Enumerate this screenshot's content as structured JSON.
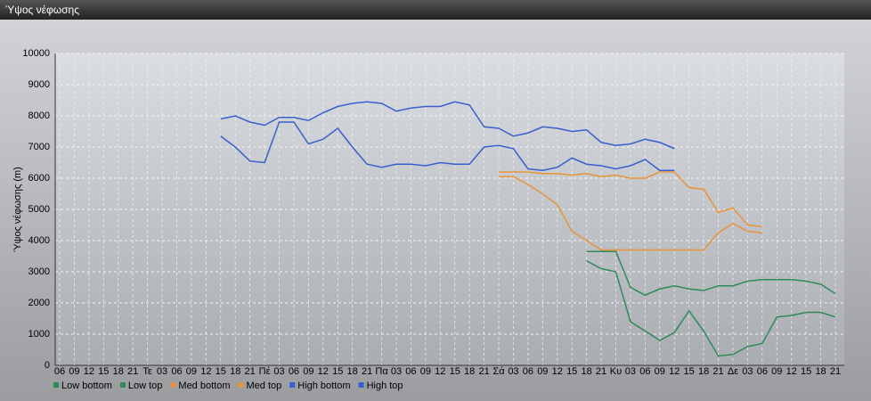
{
  "chart_data": {
    "type": "line",
    "title": "Ύψος νέφωσης",
    "y_label": "Ύψος νέφωσης (m)",
    "categories": [
      "06",
      "09",
      "12",
      "15",
      "18",
      "21",
      "Τε",
      "03",
      "06",
      "09",
      "12",
      "15",
      "18",
      "21",
      "Πέ",
      "03",
      "06",
      "09",
      "12",
      "15",
      "18",
      "21",
      "Πα",
      "03",
      "06",
      "09",
      "12",
      "15",
      "18",
      "21",
      "Σά",
      "03",
      "06",
      "09",
      "12",
      "15",
      "18",
      "21",
      "Κυ",
      "03",
      "06",
      "09",
      "12",
      "15",
      "18",
      "21",
      "Δε",
      "03",
      "06",
      "09",
      "12",
      "15",
      "18",
      "21"
    ],
    "ylim": [
      0,
      10000
    ],
    "yticks": [
      0,
      1000,
      2000,
      3000,
      4000,
      5000,
      6000,
      7000,
      8000,
      9000,
      10000
    ],
    "grid": true,
    "series": [
      {
        "name": "Low bottom",
        "color": "#2e8b57",
        "values": [
          null,
          null,
          null,
          null,
          null,
          null,
          null,
          null,
          null,
          null,
          null,
          null,
          null,
          null,
          null,
          null,
          null,
          null,
          null,
          null,
          null,
          null,
          null,
          null,
          null,
          null,
          null,
          null,
          null,
          null,
          null,
          null,
          null,
          null,
          null,
          null,
          3350,
          3100,
          3000,
          1400,
          1100,
          800,
          1050,
          1750,
          1100,
          300,
          350,
          600,
          700,
          1550,
          1600,
          1700,
          1700,
          1550
        ]
      },
      {
        "name": "Low top",
        "color": "#2e8b57",
        "values": [
          null,
          null,
          null,
          null,
          null,
          null,
          null,
          null,
          null,
          null,
          null,
          null,
          null,
          null,
          null,
          null,
          null,
          null,
          null,
          null,
          null,
          null,
          null,
          null,
          null,
          null,
          null,
          null,
          null,
          null,
          null,
          null,
          null,
          null,
          null,
          null,
          3650,
          3650,
          3650,
          2500,
          2250,
          2450,
          2550,
          2450,
          2400,
          2550,
          2550,
          2700,
          2750,
          2750,
          2750,
          2700,
          2600,
          2300
        ]
      },
      {
        "name": "Med bottom",
        "color": "#e8943a",
        "values": [
          null,
          null,
          null,
          null,
          null,
          null,
          null,
          null,
          null,
          null,
          null,
          null,
          null,
          null,
          null,
          null,
          null,
          null,
          null,
          null,
          null,
          null,
          null,
          null,
          null,
          null,
          null,
          null,
          null,
          null,
          6050,
          6050,
          5800,
          5500,
          5150,
          4300,
          4000,
          3700,
          3700,
          3700,
          3700,
          3700,
          3700,
          3700,
          3700,
          4250,
          4550,
          4300,
          4250,
          null,
          null,
          null,
          null,
          null
        ]
      },
      {
        "name": "Med top",
        "color": "#e8943a",
        "values": [
          null,
          null,
          null,
          null,
          null,
          null,
          null,
          null,
          null,
          null,
          null,
          null,
          null,
          null,
          null,
          null,
          null,
          null,
          null,
          null,
          null,
          null,
          null,
          null,
          null,
          null,
          null,
          null,
          null,
          null,
          6200,
          6200,
          6200,
          6150,
          6150,
          6100,
          6150,
          6050,
          6100,
          6000,
          6000,
          6200,
          6200,
          5700,
          5650,
          4900,
          5050,
          4500,
          4450,
          null,
          null,
          null,
          null,
          null
        ]
      },
      {
        "name": "High bottom",
        "color": "#3a5fcd",
        "values": [
          null,
          null,
          null,
          null,
          null,
          null,
          null,
          null,
          null,
          null,
          null,
          7350,
          7000,
          6550,
          6500,
          7800,
          7800,
          7100,
          7250,
          7600,
          7000,
          6450,
          6350,
          6450,
          6450,
          6400,
          6500,
          6450,
          6450,
          7000,
          7050,
          6950,
          6300,
          6250,
          6350,
          6650,
          6450,
          6400,
          6300,
          6400,
          6600,
          6250,
          6250,
          null,
          null,
          null,
          null,
          null,
          null,
          null,
          null,
          null,
          null,
          null
        ]
      },
      {
        "name": "High top",
        "color": "#3a5fcd",
        "values": [
          null,
          null,
          null,
          null,
          null,
          null,
          null,
          null,
          null,
          null,
          null,
          7900,
          8000,
          7800,
          7700,
          7950,
          7950,
          7850,
          8100,
          8300,
          8400,
          8450,
          8400,
          8150,
          8250,
          8300,
          8300,
          8450,
          8350,
          7650,
          7600,
          7350,
          7450,
          7650,
          7600,
          7500,
          7550,
          7150,
          7050,
          7100,
          7250,
          7150,
          6950,
          null,
          null,
          null,
          null,
          null,
          null,
          null,
          null,
          null,
          null,
          null
        ]
      }
    ]
  }
}
